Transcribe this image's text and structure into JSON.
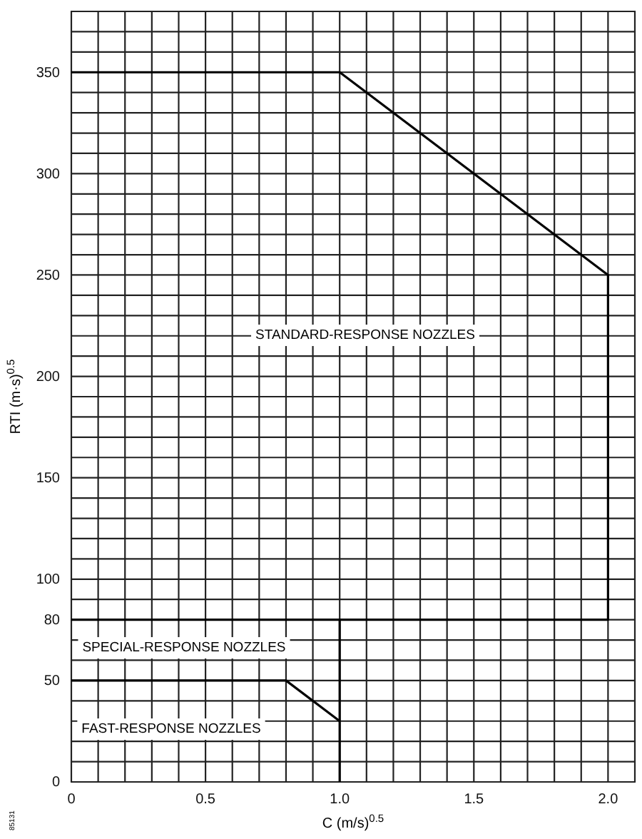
{
  "chart_data": {
    "type": "line",
    "xlabel": "C (m/s)$^{0.5}$",
    "ylabel": "RTI (m·s)$^{0.5}$",
    "xlim": [
      0,
      2.1
    ],
    "ylim": [
      0,
      380
    ],
    "xticks": [
      0,
      {
        "value": 0.1,
        "label": null
      },
      {
        "value": 0.2,
        "label": null
      },
      {
        "value": 0.3,
        "label": null
      },
      {
        "value": 0.4,
        "label": null
      },
      0.5,
      {
        "value": 0.6,
        "label": null
      },
      {
        "value": 0.7,
        "label": null
      },
      {
        "value": 0.8,
        "label": null
      },
      {
        "value": 0.9,
        "label": null
      },
      {
        "value": 1,
        "label": "1.0"
      },
      {
        "value": 1.1,
        "label": null
      },
      {
        "value": 1.2,
        "label": null
      },
      {
        "value": 1.3,
        "label": null
      },
      {
        "value": 1.4,
        "label": null
      },
      1.5,
      {
        "value": 1.6,
        "label": null
      },
      {
        "value": 1.7,
        "label": null
      },
      {
        "value": 1.8,
        "label": null
      },
      {
        "value": 1.9,
        "label": null
      },
      {
        "value": 2,
        "label": "2.0"
      },
      {
        "value": 2.1,
        "label": null
      }
    ],
    "yticks": [
      0,
      {
        "value": 10,
        "label": null
      },
      {
        "value": 20,
        "label": null
      },
      {
        "value": 30,
        "label": null
      },
      {
        "value": 40,
        "label": null
      },
      50,
      {
        "value": 60,
        "label": null
      },
      {
        "value": 70,
        "label": null
      },
      80,
      {
        "value": 90,
        "label": null
      },
      100,
      {
        "value": 110,
        "label": null
      },
      {
        "value": 120,
        "label": null
      },
      {
        "value": 130,
        "label": null
      },
      {
        "value": 140,
        "label": null
      },
      150,
      {
        "value": 160,
        "label": null
      },
      {
        "value": 170,
        "label": null
      },
      {
        "value": 180,
        "label": null
      },
      {
        "value": 190,
        "label": null
      },
      200,
      {
        "value": 210,
        "label": null
      },
      {
        "value": 220,
        "label": null
      },
      {
        "value": 230,
        "label": null
      },
      {
        "value": 240,
        "label": null
      },
      250,
      {
        "value": 260,
        "label": null
      },
      {
        "value": 270,
        "label": null
      },
      {
        "value": 280,
        "label": null
      },
      {
        "value": 290,
        "label": null
      },
      300,
      {
        "value": 310,
        "label": null
      },
      {
        "value": 320,
        "label": null
      },
      {
        "value": 330,
        "label": null
      },
      {
        "value": 340,
        "label": null
      },
      350,
      {
        "value": 360,
        "label": null
      },
      {
        "value": 370,
        "label": null
      },
      {
        "value": 380,
        "label": null
      }
    ],
    "grid": true,
    "marker": "none",
    "line_style": "solid",
    "series": [
      {
        "color": "#000000",
        "x": [
          0,
          1,
          2,
          2,
          0
        ],
        "values": [
          350,
          350,
          250,
          80,
          80
        ]
      },
      {
        "color": "#000000",
        "x": [
          1,
          1
        ],
        "values": [
          80,
          0
        ]
      },
      {
        "color": "#000000",
        "x": [
          0,
          0.8,
          1
        ],
        "values": [
          50,
          50,
          30
        ]
      }
    ],
    "annotations": [
      "STANDARD-RESPONSE NOZZLES",
      "SPECIAL-RESPONSE NOZZLES",
      "FAST-RESPONSE NOZZLES",
      "85131"
    ]
  }
}
